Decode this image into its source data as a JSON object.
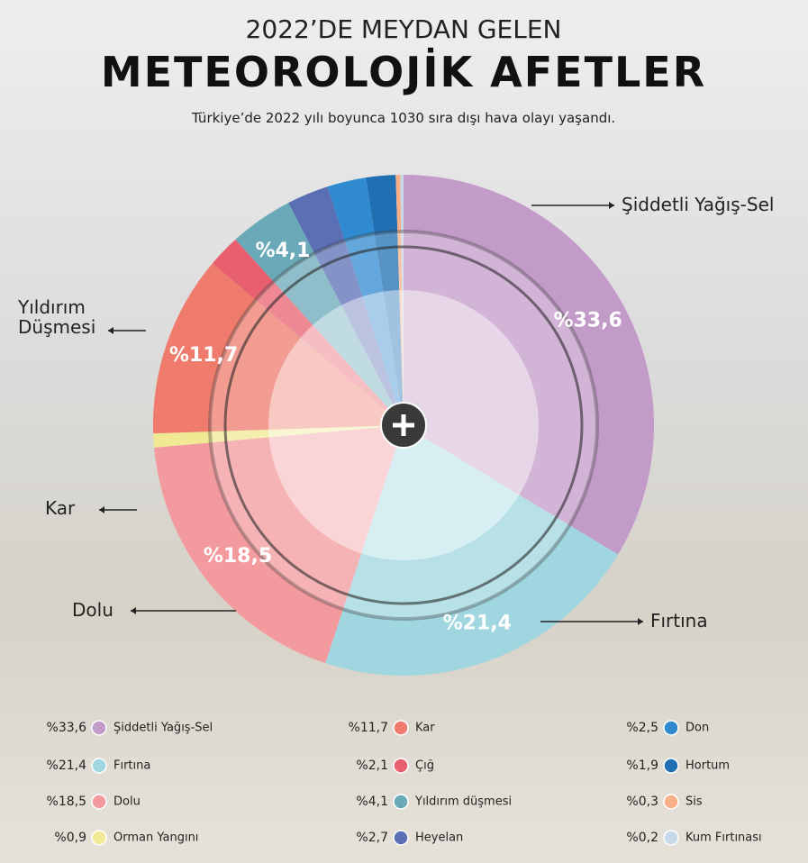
{
  "chart_data": {
    "type": "pie",
    "pretitle": "2022’DE MEYDAN GELEN",
    "title": "METEOROLOJİK AFETLER",
    "subtitle": "Türkiye’de 2022 yılı boyunca 1030 sıra dışı hava olayı yaşandı.",
    "categories": [
      "Şiddetli Yağış-Sel",
      "Fırtına",
      "Dolu",
      "Orman Yangını",
      "Kar",
      "Çığ",
      "Yıldırım düşmesi",
      "Heyelan",
      "Don",
      "Hortum",
      "Sis",
      "Kum Fırtınası"
    ],
    "values": [
      33.6,
      21.4,
      18.5,
      0.9,
      11.7,
      2.1,
      4.1,
      2.7,
      2.5,
      1.9,
      0.3,
      0.2
    ],
    "value_labels": [
      "%33,6",
      "%21,4",
      "%18,5",
      "%0,9",
      "%11,7",
      "%2,1",
      "%4,1",
      "%2,7",
      "%2,5",
      "%1,9",
      "%0,3",
      "%0,2"
    ],
    "colors": [
      "#c39bc9",
      "#9fd6df",
      "#f39a9e",
      "#f1e994",
      "#ef7b6c",
      "#e8606f",
      "#6aa9b8",
      "#5b6fb5",
      "#2f8ad0",
      "#1f6fb2",
      "#f8b08a",
      "#c8d9ea"
    ],
    "callout_labels": [
      "Şiddetli Yağış-Sel",
      "Fırtına",
      "Dolu",
      null,
      "Kar",
      null,
      "Yıldırım Düşmesi",
      null,
      null,
      null,
      null,
      null
    ]
  }
}
